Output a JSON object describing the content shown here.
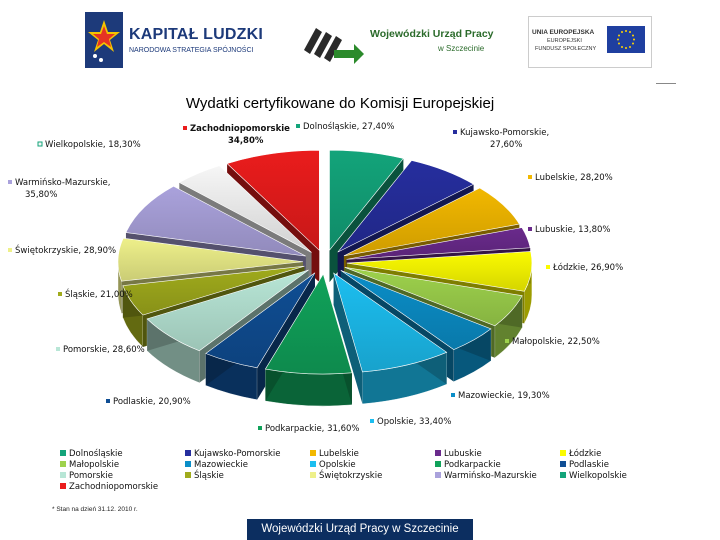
{
  "header": {
    "logo_kapital_title": "KAPITAŁ LUDZKI",
    "logo_kapital_subtitle": "NARODOWA STRATEGIA SPÓJNOŚCI",
    "logo_wup_line1": "Wojewódzki Urząd Pracy",
    "logo_wup_line2": "w Szczecinie",
    "logo_ue_line1": "UNIA EUROPEJSKA",
    "logo_ue_line2": "EUROPEJSKI",
    "logo_ue_line3": "FUNDUSZ SPOŁECZNY"
  },
  "colors": {
    "footer_bg": "#0c2e60",
    "accent_green": "#2b6b2b"
  },
  "chart_data": {
    "type": "pie",
    "title": "Wydatki certyfikowane do Komisji Europejskiej",
    "value_format": "percent_with_comma",
    "slices": [
      {
        "name": "Dolnośląskie",
        "value": 27.4,
        "label": "Dolnośląskie, 27,40%",
        "color": "#13a47a"
      },
      {
        "name": "Kujawsko-Pomorskie",
        "value": 27.6,
        "label": "Kujawsko-Pomorskie, 27,60%",
        "color": "#262e9e"
      },
      {
        "name": "Lubelskie",
        "value": 28.2,
        "label": "Lubelskie, 28,20%",
        "color": "#f2b800"
      },
      {
        "name": "Lubuskie",
        "value": 13.8,
        "label": "Lubuskie, 13,80%",
        "color": "#6a2a8c"
      },
      {
        "name": "Łódzkie",
        "value": 26.9,
        "label": "Łódzkie, 26,90%",
        "color": "#fbfb00"
      },
      {
        "name": "Małopolskie",
        "value": 22.5,
        "label": "Małopolskie, 22,50%",
        "color": "#9ed24c"
      },
      {
        "name": "Mazowieckie",
        "value": 19.3,
        "label": "Mazowieckie, 19,30%",
        "color": "#0b8ec8"
      },
      {
        "name": "Opolskie",
        "value": 33.4,
        "label": "Opolskie, 33,40%",
        "color": "#1cbef0"
      },
      {
        "name": "Podkarpackie",
        "value": 31.6,
        "label": "Podkarpackie, 31,60%",
        "color": "#10a25a"
      },
      {
        "name": "Podlaskie",
        "value": 20.9,
        "label": "Podlaskie, 20,90%",
        "color": "#0f4e94"
      },
      {
        "name": "Pomorskie",
        "value": 28.6,
        "label": "Pomorskie, 28,60%",
        "color": "#b8e6d6"
      },
      {
        "name": "Śląskie",
        "value": 21.0,
        "label": "Śląskie, 21,00%",
        "color": "#a0ab1c"
      },
      {
        "name": "Świętokrzyskie",
        "value": 28.9,
        "label": "Świętokrzyskie, 28,90%",
        "color": "#eef08a"
      },
      {
        "name": "Warmińsko-Mazurskie",
        "value": 35.8,
        "label": "Warmińsko-Mazurskie, 35,80%",
        "color": "#aaa2dc"
      },
      {
        "name": "Wielkopolskie",
        "value": 18.3,
        "label": "Wielkopolskie, 18,30%",
        "color": "#f6f6f6"
      },
      {
        "name": "Zachodniopomorskie",
        "value": 34.8,
        "label_name": "Zachodniopomorskie",
        "label_value": "34,80%",
        "color": "#ea1c1c"
      }
    ],
    "legend": {
      "placement": "bottom",
      "items": [
        "Dolnośląskie",
        "Kujawsko-Pomorskie",
        "Lubelskie",
        "Lubuskie",
        "Łódzkie",
        "Małopolskie",
        "Mazowieckie",
        "Opolskie",
        "Podkarpackie",
        "Podlaskie",
        "Pomorskie",
        "Śląskie",
        "Świętokrzyskie",
        "Warmińsko-Mazurskie",
        "Wielkopolskie",
        "Zachodniopomorskie"
      ]
    }
  },
  "footnote": "* Stan na dzień 31.12. 2010 r.",
  "footer": {
    "text": "Wojewódzki Urząd Pracy w Szczecinie"
  }
}
